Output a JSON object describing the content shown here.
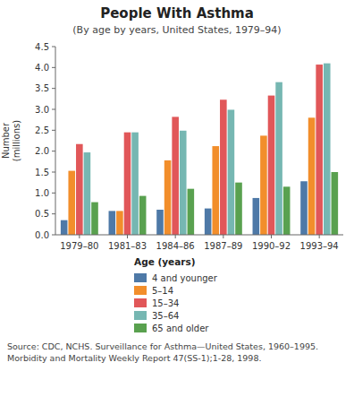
{
  "chart_data": {
    "type": "bar",
    "title": "People With Asthma",
    "subtitle": "(By age by years, United States, 1979–94)",
    "ylabel": "Number\n(millions)",
    "categories": [
      "1979–80",
      "1981–83",
      "1984–86",
      "1987–89",
      "1990–92",
      "1993–94"
    ],
    "series": [
      {
        "name": "4 and younger",
        "values": [
          0.35,
          0.57,
          0.6,
          0.63,
          0.88,
          1.28
        ]
      },
      {
        "name": "5–14",
        "values": [
          1.53,
          0.57,
          1.78,
          2.12,
          2.37,
          2.8
        ]
      },
      {
        "name": "15–34",
        "values": [
          2.17,
          2.45,
          2.82,
          3.23,
          3.33,
          4.07
        ]
      },
      {
        "name": "35–64",
        "values": [
          1.97,
          2.45,
          2.49,
          2.99,
          3.65,
          4.1
        ]
      },
      {
        "name": "65 and older",
        "values": [
          0.78,
          0.93,
          1.1,
          1.25,
          1.15,
          1.5
        ]
      }
    ],
    "ylim": [
      0,
      4.5
    ],
    "yticks": [
      {
        "value": 0,
        "label": "0.0"
      },
      0.5,
      {
        "value": 1,
        "label": "1.0"
      },
      1.5,
      {
        "value": 2,
        "label": "2.0"
      },
      2.5,
      {
        "value": 3,
        "label": "3.0"
      },
      3.5,
      {
        "value": 4,
        "label": "4.0"
      },
      4.5
    ],
    "grid": false,
    "legend": "bottom",
    "legend_title": "Age (years)",
    "source": "Source: CDC, NCHS. Surveillance for Asthma—United States, 1960–1995. Morbidity and Mortality Weekly Report 47(SS-1);1-28, 1998."
  }
}
